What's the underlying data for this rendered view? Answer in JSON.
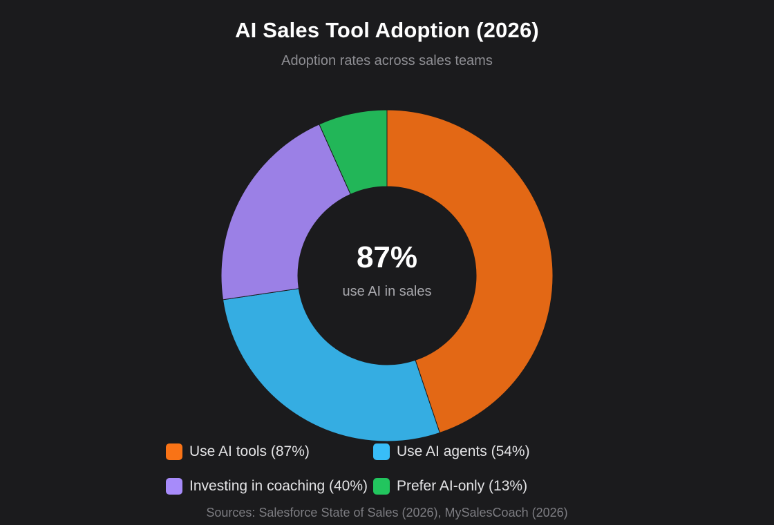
{
  "title": "AI Sales Tool Adoption (2026)",
  "subtitle": "Adoption rates across sales teams",
  "center": {
    "value": "87%",
    "label": "use AI in sales"
  },
  "legend": [
    {
      "label": "Use AI tools (87%)",
      "color": "#f97316"
    },
    {
      "label": "Use AI agents (54%)",
      "color": "#38bdf8"
    },
    {
      "label": "Investing in coaching (40%)",
      "color": "#a78bfa"
    },
    {
      "label": "Prefer AI-only (13%)",
      "color": "#22c55e"
    }
  ],
  "sources": "Sources: Salesforce State of Sales (2026), MySalesCoach (2026)",
  "chart_data": {
    "type": "pie",
    "variant": "donut",
    "categories": [
      "Use AI tools",
      "Use AI agents",
      "Investing in coaching",
      "Prefer AI-only"
    ],
    "values": [
      87,
      54,
      40,
      13
    ],
    "slice_colors": [
      "#e36815",
      "#35ade2",
      "#9b80e6",
      "#22b658"
    ],
    "legend_position": "bottom"
  }
}
